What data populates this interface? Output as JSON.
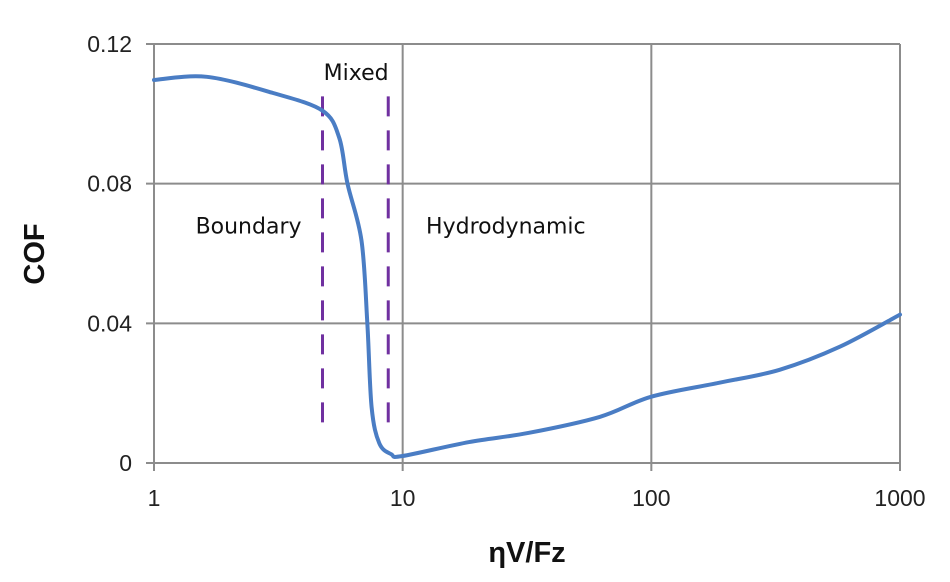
{
  "chart_data": {
    "type": "line",
    "title": "",
    "xlabel": "ηV/Fz",
    "ylabel": "COF",
    "xscale": "log",
    "xlim": [
      1,
      1000
    ],
    "ylim": [
      0,
      0.12
    ],
    "xticks": [
      "1",
      "10",
      "100",
      "1000"
    ],
    "yticks": [
      "0",
      "0.04",
      "0.08",
      "0.12"
    ],
    "grid": true,
    "colors": {
      "curve": "#4a7dc4",
      "boundary_lines": "#7030a0",
      "grid": "#8c8c8c"
    },
    "series": [
      {
        "x": [
          1,
          1.63,
          3.0,
          4.76,
          5.56,
          6.0,
          6.83,
          7.21,
          7.5,
          8.05,
          9.0,
          10,
          18.5,
          32,
          62,
          100,
          188,
          328,
          573,
          1000
        ],
        "y": [
          0.1097,
          0.1106,
          0.106,
          0.1009,
          0.0931,
          0.08,
          0.0637,
          0.04,
          0.016,
          0.0057,
          0.0025,
          0.002,
          0.006,
          0.0086,
          0.0132,
          0.019,
          0.023,
          0.0267,
          0.0333,
          0.0425
        ]
      }
    ],
    "regime_boundaries": [
      {
        "x": 4.76,
        "y_range": [
          0.0103,
          0.105
        ]
      },
      {
        "x": 8.75,
        "y_range": [
          0.0103,
          0.105
        ]
      }
    ],
    "annotations": [
      {
        "text": "Mixed",
        "x": 6.5,
        "y": 0.112
      },
      {
        "text": "Boundary",
        "x": 2.4,
        "y": 0.068
      },
      {
        "text": "Hydrodynamic",
        "x": 26,
        "y": 0.068
      }
    ]
  }
}
